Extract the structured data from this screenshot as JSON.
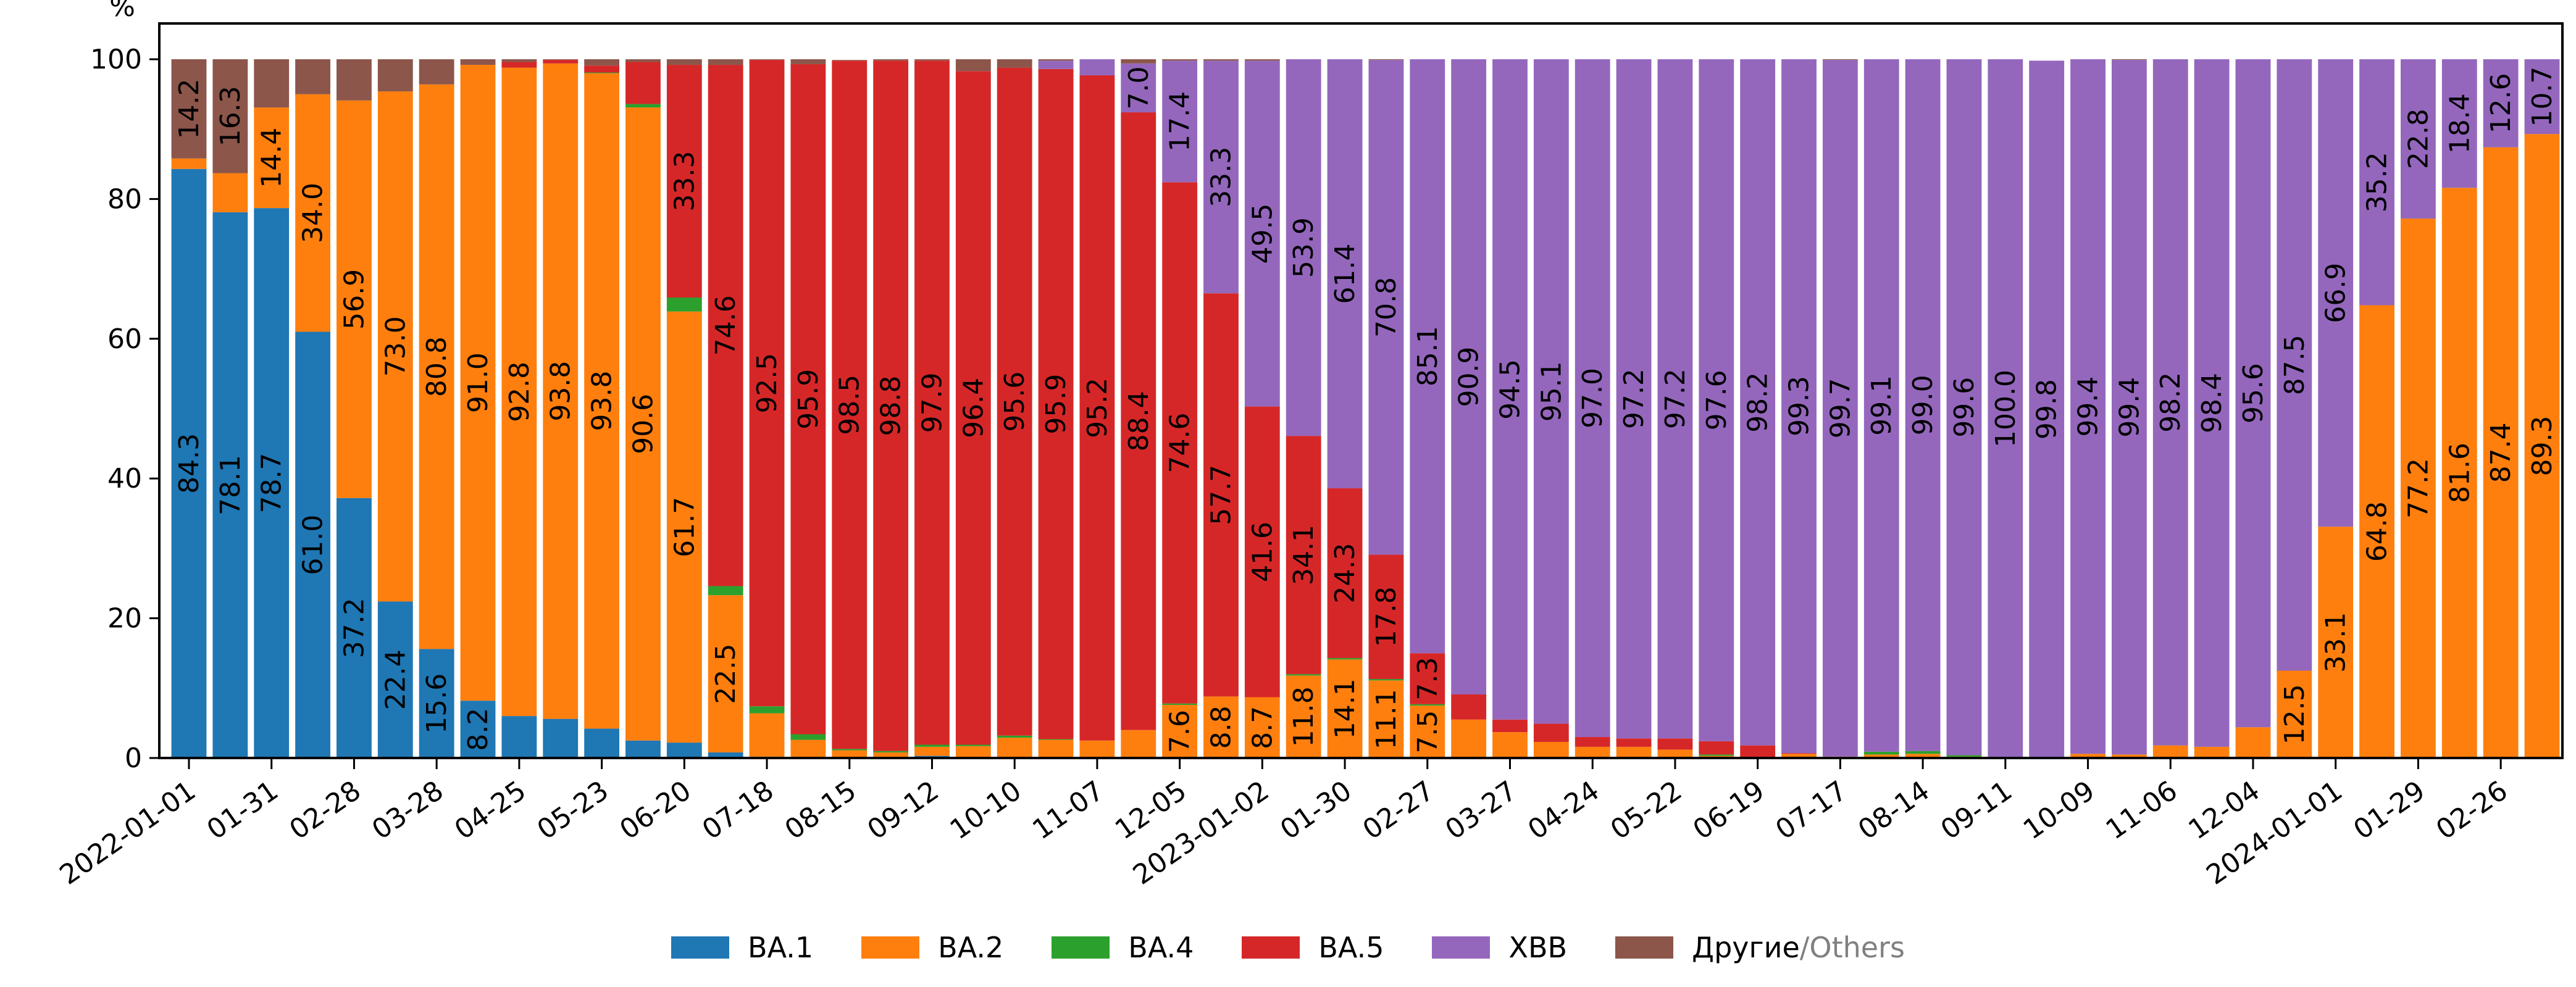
{
  "chart_data": {
    "type": "bar",
    "stacked": true,
    "title": "",
    "xlabel": "",
    "ylabel": "%",
    "ylim": [
      0,
      100
    ],
    "yticks": [
      0,
      20,
      40,
      60,
      80,
      100
    ],
    "grid": false,
    "legend_position": "bottom-center",
    "x_tick_labels": [
      "2022-01-01",
      "01-31",
      "02-28",
      "03-28",
      "04-25",
      "05-23",
      "06-20",
      "07-18",
      "08-15",
      "09-12",
      "10-10",
      "11-07",
      "12-05",
      "2023-01-02",
      "01-30",
      "02-27",
      "03-27",
      "04-24",
      "05-22",
      "06-19",
      "07-17",
      "08-14",
      "09-11",
      "10-09",
      "11-06",
      "12-04",
      "2024-01-01",
      "01-29",
      "02-26"
    ],
    "x_tick_every_n_bars": 2,
    "bar_count": 58,
    "series": [
      {
        "name": "BA.1",
        "color": "#1f77b4",
        "values": [
          84.3,
          78.1,
          78.7,
          61.0,
          37.2,
          22.4,
          15.6,
          8.2,
          6.0,
          5.6,
          4.2,
          2.5,
          2.2,
          0.8,
          0.2,
          0.1,
          0.1,
          0.1,
          0.3,
          0.1,
          0.1,
          0,
          0,
          0,
          0,
          0,
          0,
          0,
          0,
          0,
          0,
          0,
          0,
          0,
          0,
          0,
          0,
          0,
          0,
          0,
          0,
          0,
          0,
          0,
          0,
          0,
          0,
          0,
          0,
          0,
          0,
          0,
          0,
          0,
          0,
          0,
          0,
          0
        ]
      },
      {
        "name": "BA.2",
        "color": "#ff7f0e",
        "values": [
          1.5,
          5.6,
          14.4,
          34.0,
          56.9,
          73.0,
          80.8,
          91.0,
          92.8,
          93.8,
          93.8,
          90.6,
          61.7,
          22.5,
          6.2,
          2.5,
          1.0,
          0.7,
          1.3,
          1.6,
          2.8,
          2.6,
          2.5,
          4.0,
          7.6,
          8.8,
          8.7,
          11.8,
          14.1,
          11.1,
          7.5,
          5.5,
          3.7,
          2.3,
          1.6,
          1.6,
          1.2,
          0.3,
          0,
          0.6,
          0.2,
          0.5,
          0.6,
          0.2,
          0,
          0,
          0.6,
          0.5,
          1.8,
          1.6,
          4.4,
          12.5,
          33.1,
          64.8,
          77.2,
          81.6,
          87.4,
          89.3
        ]
      },
      {
        "name": "BA.4",
        "color": "#2ca02c",
        "values": [
          0,
          0,
          0,
          0,
          0,
          0,
          0,
          0,
          0,
          0,
          0.1,
          0.5,
          2.0,
          1.3,
          1.0,
          0.8,
          0.2,
          0.2,
          0.3,
          0.2,
          0.3,
          0.1,
          0,
          0,
          0.2,
          0,
          0,
          0.2,
          0.2,
          0.2,
          0.2,
          0,
          0,
          0,
          0,
          0,
          0,
          0.2,
          0,
          0,
          0,
          0.4,
          0.4,
          0.2,
          0,
          0,
          0,
          0,
          0,
          0,
          0,
          0,
          0,
          0,
          0,
          0,
          0,
          0
        ]
      },
      {
        "name": "BA.5",
        "color": "#d62728",
        "values": [
          0,
          0,
          0,
          0,
          0,
          0,
          0,
          0,
          0.8,
          0.5,
          1.0,
          6.0,
          33.3,
          74.6,
          92.5,
          95.9,
          98.5,
          98.8,
          97.9,
          96.4,
          95.6,
          95.9,
          95.2,
          88.4,
          74.6,
          57.7,
          41.6,
          34.1,
          24.3,
          17.8,
          7.3,
          3.6,
          1.8,
          2.6,
          1.4,
          1.2,
          1.6,
          1.9,
          1.8,
          0.1,
          0,
          0,
          0,
          0,
          0,
          0,
          0,
          0,
          0,
          0,
          0,
          0,
          0,
          0,
          0,
          0,
          0,
          0
        ]
      },
      {
        "name": "XBB",
        "color": "#9467bd",
        "values": [
          0,
          0,
          0,
          0,
          0,
          0,
          0,
          0,
          0,
          0,
          0,
          0,
          0,
          0,
          0,
          0,
          0,
          0,
          0,
          0,
          0,
          1.2,
          2.3,
          7.0,
          17.4,
          33.3,
          49.5,
          53.9,
          61.4,
          70.8,
          85.1,
          90.9,
          94.5,
          95.1,
          97.0,
          97.2,
          97.2,
          97.6,
          98.2,
          99.3,
          99.7,
          99.1,
          99.0,
          99.6,
          100.0,
          99.8,
          99.4,
          99.4,
          98.2,
          98.4,
          95.6,
          87.5,
          66.9,
          35.2,
          22.8,
          18.4,
          12.6,
          10.7
        ]
      },
      {
        "name": "Другие/Others",
        "color": "#8c564b",
        "values": [
          14.2,
          16.3,
          6.9,
          5.0,
          5.9,
          4.6,
          3.6,
          0.8,
          0.4,
          0.1,
          0.9,
          0.4,
          0.8,
          0.8,
          0.1,
          0.7,
          0.1,
          0.2,
          0.5,
          1.7,
          1.3,
          0.2,
          0,
          0.6,
          0.2,
          0.2,
          0.2,
          0,
          0,
          0.1,
          0,
          0,
          0,
          0,
          0,
          0,
          0,
          0,
          0,
          0,
          0.1,
          0,
          0,
          0,
          0,
          0,
          0,
          0.1,
          0,
          0,
          0,
          0,
          0,
          0,
          0,
          0,
          0,
          0
        ]
      }
    ],
    "data_labels": [
      {
        "bar": 0,
        "series": "BA.1",
        "text": "84.3"
      },
      {
        "bar": 0,
        "series": "Другие/Others",
        "text": "14.2"
      },
      {
        "bar": 1,
        "series": "BA.1",
        "text": "78.1"
      },
      {
        "bar": 1,
        "series": "Другие/Others",
        "text": "16.3"
      },
      {
        "bar": 2,
        "series": "BA.1",
        "text": "78.7"
      },
      {
        "bar": 2,
        "series": "BA.2",
        "text": "14.4"
      },
      {
        "bar": 3,
        "series": "BA.1",
        "text": "61.0"
      },
      {
        "bar": 3,
        "series": "BA.2",
        "text": "34.0"
      },
      {
        "bar": 4,
        "series": "BA.1",
        "text": "37.2"
      },
      {
        "bar": 4,
        "series": "BA.2",
        "text": "56.9"
      },
      {
        "bar": 5,
        "series": "BA.1",
        "text": "22.4"
      },
      {
        "bar": 5,
        "series": "BA.2",
        "text": "73.0"
      },
      {
        "bar": 6,
        "series": "BA.1",
        "text": "15.6"
      },
      {
        "bar": 6,
        "series": "BA.2",
        "text": "80.8"
      },
      {
        "bar": 7,
        "series": "BA.1",
        "text": "8.2"
      },
      {
        "bar": 7,
        "series": "BA.2",
        "text": "91.0"
      },
      {
        "bar": 8,
        "series": "BA.2",
        "text": "92.8"
      },
      {
        "bar": 9,
        "series": "BA.2",
        "text": "93.8"
      },
      {
        "bar": 10,
        "series": "BA.2",
        "text": "93.8"
      },
      {
        "bar": 11,
        "series": "BA.2",
        "text": "90.6"
      },
      {
        "bar": 12,
        "series": "BA.2",
        "text": "61.7"
      },
      {
        "bar": 12,
        "series": "BA.5",
        "text": "33.3"
      },
      {
        "bar": 13,
        "series": "BA.2",
        "text": "22.5"
      },
      {
        "bar": 13,
        "series": "BA.5",
        "text": "74.6"
      },
      {
        "bar": 14,
        "series": "BA.5",
        "text": "92.5"
      },
      {
        "bar": 15,
        "series": "BA.5",
        "text": "95.9"
      },
      {
        "bar": 16,
        "series": "BA.5",
        "text": "98.5"
      },
      {
        "bar": 17,
        "series": "BA.5",
        "text": "98.8"
      },
      {
        "bar": 18,
        "series": "BA.5",
        "text": "97.9"
      },
      {
        "bar": 19,
        "series": "BA.5",
        "text": "96.4"
      },
      {
        "bar": 20,
        "series": "BA.5",
        "text": "95.6"
      },
      {
        "bar": 21,
        "series": "BA.5",
        "text": "95.9"
      },
      {
        "bar": 22,
        "series": "BA.5",
        "text": "95.2"
      },
      {
        "bar": 23,
        "series": "BA.5",
        "text": "88.4"
      },
      {
        "bar": 23,
        "series": "XBB",
        "text": "7.0"
      },
      {
        "bar": 24,
        "series": "BA.2",
        "text": "7.6"
      },
      {
        "bar": 24,
        "series": "BA.5",
        "text": "74.6"
      },
      {
        "bar": 24,
        "series": "XBB",
        "text": "17.4"
      },
      {
        "bar": 25,
        "series": "BA.2",
        "text": "8.8"
      },
      {
        "bar": 25,
        "series": "BA.5",
        "text": "57.7"
      },
      {
        "bar": 25,
        "series": "XBB",
        "text": "33.3"
      },
      {
        "bar": 26,
        "series": "BA.2",
        "text": "8.7"
      },
      {
        "bar": 26,
        "series": "BA.5",
        "text": "41.6"
      },
      {
        "bar": 26,
        "series": "XBB",
        "text": "49.5"
      },
      {
        "bar": 27,
        "series": "BA.2",
        "text": "11.8"
      },
      {
        "bar": 27,
        "series": "BA.5",
        "text": "34.1"
      },
      {
        "bar": 27,
        "series": "XBB",
        "text": "53.9"
      },
      {
        "bar": 28,
        "series": "BA.2",
        "text": "14.1"
      },
      {
        "bar": 28,
        "series": "BA.5",
        "text": "24.3"
      },
      {
        "bar": 28,
        "series": "XBB",
        "text": "61.4"
      },
      {
        "bar": 29,
        "series": "BA.2",
        "text": "11.1"
      },
      {
        "bar": 29,
        "series": "BA.5",
        "text": "17.8"
      },
      {
        "bar": 29,
        "series": "XBB",
        "text": "70.8"
      },
      {
        "bar": 30,
        "series": "BA.2",
        "text": "7.5"
      },
      {
        "bar": 30,
        "series": "BA.5",
        "text": "7.3"
      },
      {
        "bar": 30,
        "series": "XBB",
        "text": "85.1"
      },
      {
        "bar": 31,
        "series": "XBB",
        "text": "90.9"
      },
      {
        "bar": 32,
        "series": "XBB",
        "text": "94.5"
      },
      {
        "bar": 33,
        "series": "XBB",
        "text": "95.1"
      },
      {
        "bar": 34,
        "series": "XBB",
        "text": "97.0"
      },
      {
        "bar": 35,
        "series": "XBB",
        "text": "97.2"
      },
      {
        "bar": 36,
        "series": "XBB",
        "text": "97.2"
      },
      {
        "bar": 37,
        "series": "XBB",
        "text": "97.6"
      },
      {
        "bar": 38,
        "series": "XBB",
        "text": "98.2"
      },
      {
        "bar": 39,
        "series": "XBB",
        "text": "99.3"
      },
      {
        "bar": 40,
        "series": "XBB",
        "text": "99.7"
      },
      {
        "bar": 41,
        "series": "XBB",
        "text": "99.1"
      },
      {
        "bar": 42,
        "series": "XBB",
        "text": "99.0"
      },
      {
        "bar": 43,
        "series": "XBB",
        "text": "99.6"
      },
      {
        "bar": 44,
        "series": "XBB",
        "text": "100.0"
      },
      {
        "bar": 45,
        "series": "XBB",
        "text": "99.8"
      },
      {
        "bar": 46,
        "series": "XBB",
        "text": "99.4"
      },
      {
        "bar": 47,
        "series": "XBB",
        "text": "99.4"
      },
      {
        "bar": 48,
        "series": "XBB",
        "text": "98.2"
      },
      {
        "bar": 49,
        "series": "XBB",
        "text": "98.4"
      },
      {
        "bar": 50,
        "series": "XBB",
        "text": "95.6"
      },
      {
        "bar": 51,
        "series": "BA.2",
        "text": "12.5"
      },
      {
        "bar": 51,
        "series": "XBB",
        "text": "87.5"
      },
      {
        "bar": 52,
        "series": "BA.2",
        "text": "33.1"
      },
      {
        "bar": 52,
        "series": "XBB",
        "text": "66.9"
      },
      {
        "bar": 53,
        "series": "BA.2",
        "text": "64.8"
      },
      {
        "bar": 53,
        "series": "XBB",
        "text": "35.2"
      },
      {
        "bar": 54,
        "series": "BA.2",
        "text": "77.2"
      },
      {
        "bar": 54,
        "series": "XBB",
        "text": "22.8"
      },
      {
        "bar": 55,
        "series": "BA.2",
        "text": "81.6"
      },
      {
        "bar": 55,
        "series": "XBB",
        "text": "18.4"
      },
      {
        "bar": 56,
        "series": "BA.2",
        "text": "87.4"
      },
      {
        "bar": 56,
        "series": "XBB",
        "text": "12.6"
      },
      {
        "bar": 57,
        "series": "BA.2",
        "text": "89.3"
      },
      {
        "bar": 57,
        "series": "XBB",
        "text": "10.7"
      }
    ]
  },
  "legend": {
    "items": [
      {
        "label": "BA.1",
        "color": "#1f77b4"
      },
      {
        "label": "BA.2",
        "color": "#ff7f0e"
      },
      {
        "label": "BA.4",
        "color": "#2ca02c"
      },
      {
        "label": "BA.5",
        "color": "#d62728"
      },
      {
        "label": "XBB",
        "color": "#9467bd"
      },
      {
        "label_main": "Другие",
        "label_sep": "/",
        "label_muted": "Others",
        "color": "#8c564b"
      }
    ]
  }
}
